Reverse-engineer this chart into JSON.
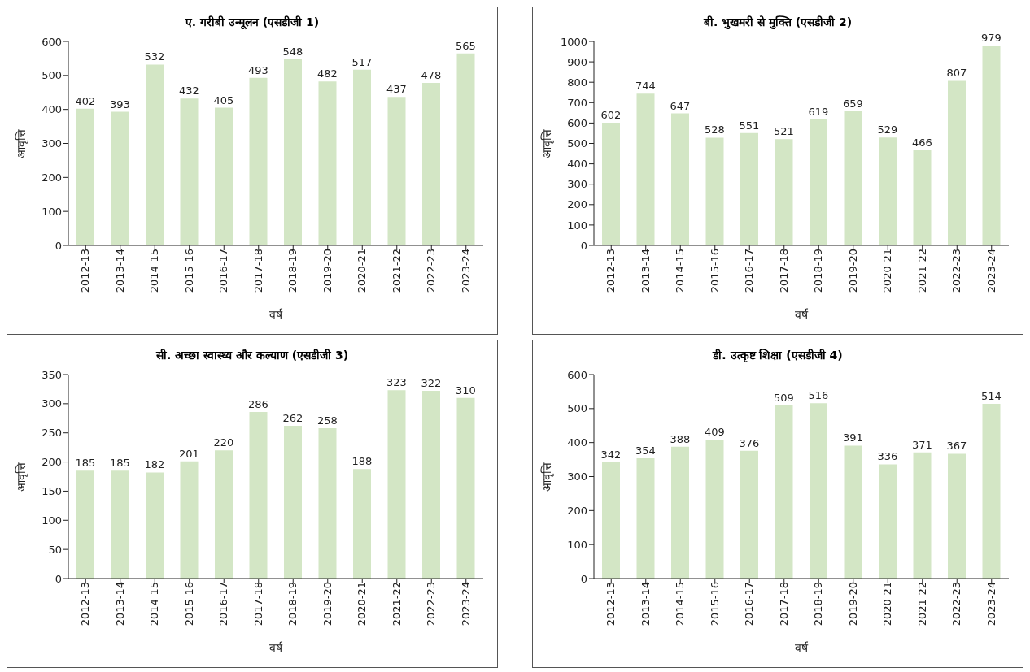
{
  "chart_data": [
    {
      "type": "bar",
      "title": "ए. गरीबी उन्मूलन (एसडीजी 1)",
      "xlabel": "वर्ष",
      "ylabel": "आवृत्ति",
      "categories": [
        "2012-13",
        "2013-14",
        "2014-15",
        "2015-16",
        "2016-17",
        "2017-18",
        "2018-19",
        "2019-20",
        "2020-21",
        "2021-22",
        "2022-23",
        "2023-24"
      ],
      "values": [
        402,
        393,
        532,
        432,
        405,
        493,
        548,
        482,
        517,
        437,
        478,
        565
      ],
      "color": "#d3e6c5",
      "ylim": [
        0,
        600
      ],
      "yticks": [
        0,
        100,
        200,
        300,
        400,
        500,
        600
      ],
      "data_labels": true,
      "grid": false,
      "legend": false
    },
    {
      "type": "bar",
      "title": "बी. भुखमरी से मुक्ति (एसडीजी 2)",
      "xlabel": "वर्ष",
      "ylabel": "आवृत्ति",
      "categories": [
        "2012-13",
        "2013-14",
        "2014-15",
        "2015-16",
        "2016-17",
        "2017-18",
        "2018-19",
        "2019-20",
        "2020-21",
        "2021-22",
        "2022-23",
        "2023-24"
      ],
      "values": [
        602,
        744,
        647,
        528,
        551,
        521,
        619,
        659,
        529,
        466,
        807,
        979
      ],
      "color": "#d3e6c5",
      "ylim": [
        0,
        1000
      ],
      "yticks": [
        0,
        100,
        200,
        300,
        400,
        500,
        600,
        700,
        800,
        900,
        1000
      ],
      "data_labels": true,
      "grid": false,
      "legend": false
    },
    {
      "type": "bar",
      "title": "सी. अच्छा स्वास्थ्य और कल्याण (एसडीजी 3)",
      "xlabel": "वर्ष",
      "ylabel": "आवृत्ति",
      "categories": [
        "2012-13",
        "2013-14",
        "2014-15",
        "2015-16",
        "2016-17",
        "2017-18",
        "2018-19",
        "2019-20",
        "2020-21",
        "2021-22",
        "2022-23",
        "2023-24"
      ],
      "values": [
        185,
        185,
        182,
        201,
        220,
        286,
        262,
        258,
        188,
        323,
        322,
        310
      ],
      "color": "#d3e6c5",
      "ylim": [
        0,
        350
      ],
      "yticks": [
        0,
        50,
        100,
        150,
        200,
        250,
        300,
        350
      ],
      "data_labels": true,
      "grid": false,
      "legend": false
    },
    {
      "type": "bar",
      "title": "डी. उत्कृष्ट शिक्षा (एसडीजी 4)",
      "xlabel": "वर्ष",
      "ylabel": "आवृत्ति",
      "categories": [
        "2012-13",
        "2013-14",
        "2014-15",
        "2015-16",
        "2016-17",
        "2017-18",
        "2018-19",
        "2019-20",
        "2020-21",
        "2021-22",
        "2022-23",
        "2023-24"
      ],
      "values": [
        342,
        354,
        388,
        409,
        376,
        509,
        516,
        391,
        336,
        371,
        367,
        514
      ],
      "color": "#d3e6c5",
      "ylim": [
        0,
        600
      ],
      "yticks": [
        0,
        100,
        200,
        300,
        400,
        500,
        600
      ],
      "data_labels": true,
      "grid": false,
      "legend": false
    }
  ]
}
